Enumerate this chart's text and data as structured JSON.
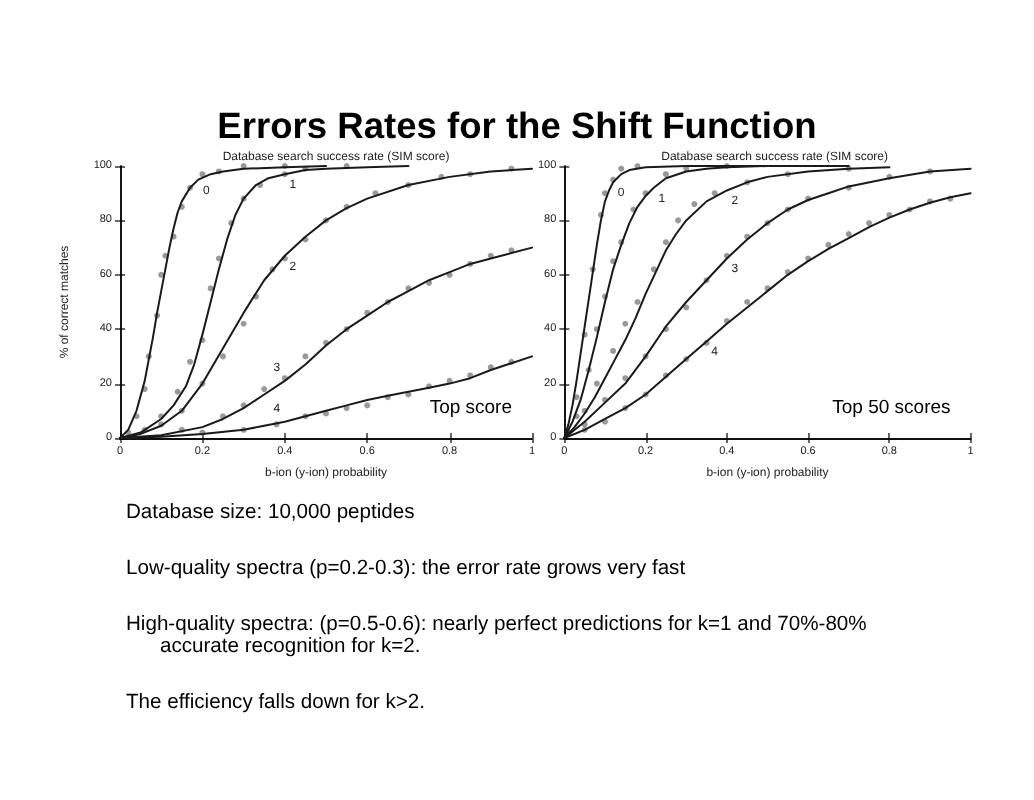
{
  "chart_data": [
    {
      "type": "other",
      "title": "Errors Rates for the Shift Function"
    },
    {
      "type": "line",
      "title": "Database search success rate (SIM score)",
      "xlabel": "b-ion (y-ion) probability",
      "ylabel": "% of correct matches",
      "xlim": [
        0,
        1
      ],
      "xticks": [
        0,
        0.2,
        0.4,
        0.6,
        0.8,
        1
      ],
      "ylim": [
        0,
        100
      ],
      "yticks": [
        0,
        20,
        40,
        60,
        80,
        100
      ],
      "series": [
        {
          "color": "#1a1a1a",
          "x": [
            0,
            0.02,
            0.04,
            0.06,
            0.07,
            0.08,
            0.09,
            0.1,
            0.11,
            0.12,
            0.13,
            0.14,
            0.15,
            0.17,
            0.19,
            0.22,
            0.25,
            0.3,
            0.4,
            0.5
          ],
          "values": [
            0,
            3,
            10,
            21,
            29,
            37,
            46,
            54,
            62,
            70,
            77,
            83,
            87,
            92,
            95,
            97,
            98,
            99,
            99.5,
            100
          ]
        },
        {
          "color": "#1a1a1a",
          "x": [
            0,
            0.05,
            0.1,
            0.13,
            0.16,
            0.18,
            0.2,
            0.22,
            0.24,
            0.26,
            0.28,
            0.3,
            0.33,
            0.36,
            0.4,
            0.45,
            0.5,
            0.6,
            0.7
          ],
          "values": [
            0,
            2,
            7,
            12,
            19,
            27,
            38,
            50,
            62,
            73,
            82,
            88,
            93,
            95.5,
            97,
            98.5,
            99,
            99.5,
            100
          ]
        },
        {
          "color": "#1a1a1a",
          "x": [
            0,
            0.05,
            0.1,
            0.15,
            0.2,
            0.25,
            0.3,
            0.35,
            0.4,
            0.45,
            0.5,
            0.55,
            0.6,
            0.7,
            0.8,
            0.9,
            1
          ],
          "values": [
            0,
            1.5,
            4.5,
            10,
            20,
            33,
            46,
            58,
            67,
            74,
            80,
            84.5,
            88,
            93,
            96,
            98,
            99
          ]
        },
        {
          "color": "#1a1a1a",
          "x": [
            0,
            0.1,
            0.2,
            0.25,
            0.3,
            0.35,
            0.4,
            0.45,
            0.5,
            0.55,
            0.6,
            0.65,
            0.7,
            0.75,
            0.8,
            0.85,
            0.9,
            0.95,
            1
          ],
          "values": [
            0,
            1,
            4,
            7,
            11,
            16,
            21,
            27,
            34,
            40,
            45,
            50,
            54,
            58,
            61,
            64,
            66,
            68,
            70
          ]
        },
        {
          "color": "#1a1a1a",
          "x": [
            0,
            0.1,
            0.2,
            0.3,
            0.35,
            0.4,
            0.45,
            0.5,
            0.55,
            0.6,
            0.65,
            0.7,
            0.75,
            0.8,
            0.85,
            0.9,
            0.95,
            1
          ],
          "values": [
            0,
            0.5,
            1.5,
            3,
            4.5,
            6,
            8,
            10,
            12,
            14,
            15.5,
            17,
            18.5,
            20,
            22,
            25,
            27.5,
            30
          ]
        },
        {
          "type": "scatter",
          "marker": "circle",
          "color": "#808080",
          "x": [
            0.02,
            0.04,
            0.06,
            0.07,
            0.09,
            0.1,
            0.11,
            0.13,
            0.15,
            0.17,
            0.2,
            0.24,
            0.3,
            0.4,
            0.06,
            0.1,
            0.14,
            0.17,
            0.2,
            0.22,
            0.24,
            0.27,
            0.3,
            0.34,
            0.4,
            0.45,
            0.55,
            0.1,
            0.15,
            0.2,
            0.25,
            0.3,
            0.33,
            0.37,
            0.4,
            0.45,
            0.5,
            0.55,
            0.62,
            0.7,
            0.78,
            0.85,
            0.95,
            0.15,
            0.25,
            0.3,
            0.35,
            0.4,
            0.45,
            0.5,
            0.55,
            0.6,
            0.65,
            0.7,
            0.75,
            0.8,
            0.85,
            0.9,
            0.95,
            0.2,
            0.3,
            0.38,
            0.45,
            0.5,
            0.55,
            0.6,
            0.65,
            0.7,
            0.75,
            0.8,
            0.85,
            0.9,
            0.95
          ],
          "values": [
            2,
            8,
            18,
            30,
            45,
            60,
            67,
            74,
            85,
            92,
            97,
            98,
            100,
            100,
            3,
            8,
            17,
            28,
            36,
            55,
            66,
            79,
            88,
            93,
            97,
            99,
            100,
            5,
            10,
            20,
            30,
            42,
            52,
            62,
            66,
            73,
            80,
            85,
            90,
            93,
            96,
            97,
            99,
            3,
            8,
            12,
            18,
            22,
            30,
            35,
            40,
            46,
            50,
            55,
            57,
            60,
            64,
            67,
            69,
            2,
            3,
            5,
            8,
            9,
            11,
            12,
            15,
            16,
            19,
            21,
            23,
            26,
            28
          ]
        }
      ],
      "annotations": [
        {
          "text": "0",
          "x": 0.19,
          "y": 95
        },
        {
          "text": "1",
          "x": 0.4,
          "y": 97
        },
        {
          "text": "2",
          "x": 0.4,
          "y": 67
        },
        {
          "text": "3",
          "x": 0.4,
          "y": 21
        },
        {
          "text": "4",
          "x": 0.4,
          "y": 6
        },
        "Top score"
      ]
    },
    {
      "type": "line",
      "title": "Database search success rate (SIM score)",
      "xlabel": "b-ion (y-ion) probability",
      "xlim": [
        0,
        1
      ],
      "xticks": [
        0,
        0.2,
        0.4,
        0.6,
        0.8,
        1
      ],
      "ylim": [
        0,
        100
      ],
      "yticks": [
        0,
        20,
        40,
        60,
        80,
        100
      ],
      "series": [
        {
          "color": "#1a1a1a",
          "x": [
            0,
            0.01,
            0.02,
            0.03,
            0.04,
            0.05,
            0.06,
            0.07,
            0.08,
            0.09,
            0.1,
            0.11,
            0.12,
            0.14,
            0.16,
            0.2,
            0.3,
            0.5
          ],
          "values": [
            0,
            5,
            12,
            21,
            31,
            41,
            51,
            61,
            71,
            80,
            87,
            91,
            94,
            97,
            98.5,
            99.5,
            100,
            100
          ]
        },
        {
          "color": "#1a1a1a",
          "x": [
            0,
            0.02,
            0.04,
            0.06,
            0.08,
            0.1,
            0.12,
            0.14,
            0.16,
            0.18,
            0.2,
            0.22,
            0.25,
            0.3,
            0.35,
            0.4,
            0.5,
            0.7
          ],
          "values": [
            0,
            6,
            14,
            25,
            37,
            50,
            62,
            71,
            79,
            85,
            89,
            92,
            95.5,
            98,
            99,
            99.5,
            100,
            100
          ]
        },
        {
          "color": "#1a1a1a",
          "x": [
            0,
            0.025,
            0.05,
            0.075,
            0.1,
            0.125,
            0.15,
            0.175,
            0.2,
            0.225,
            0.25,
            0.275,
            0.3,
            0.35,
            0.4,
            0.45,
            0.5,
            0.6,
            0.7,
            0.8
          ],
          "values": [
            0,
            4,
            9,
            15,
            22,
            29,
            36,
            44,
            53,
            61,
            69,
            75,
            80,
            87,
            91,
            94,
            96,
            98,
            99,
            99.5
          ]
        },
        {
          "color": "#1a1a1a",
          "x": [
            0,
            0.05,
            0.1,
            0.15,
            0.2,
            0.25,
            0.3,
            0.35,
            0.4,
            0.45,
            0.5,
            0.55,
            0.6,
            0.65,
            0.7,
            0.8,
            0.9,
            1
          ],
          "values": [
            0,
            6,
            13,
            20,
            30,
            41,
            50,
            58,
            66,
            73,
            79,
            84,
            87.5,
            90,
            92.5,
            95.5,
            98,
            99
          ]
        },
        {
          "color": "#1a1a1a",
          "x": [
            0,
            0.05,
            0.1,
            0.15,
            0.2,
            0.25,
            0.3,
            0.35,
            0.4,
            0.45,
            0.5,
            0.55,
            0.6,
            0.65,
            0.7,
            0.75,
            0.8,
            0.85,
            0.9,
            0.95,
            1
          ],
          "values": [
            0,
            3,
            7,
            11,
            16,
            22.5,
            29,
            35.5,
            42,
            48,
            54,
            60,
            65,
            69.5,
            73.5,
            77.5,
            81,
            84,
            86.5,
            88.5,
            90
          ]
        },
        {
          "type": "scatter",
          "marker": "circle",
          "color": "#808080",
          "x": [
            0.01,
            0.03,
            0.05,
            0.07,
            0.09,
            0.1,
            0.12,
            0.14,
            0.18,
            0.03,
            0.06,
            0.08,
            0.1,
            0.12,
            0.14,
            0.17,
            0.2,
            0.25,
            0.3,
            0.4,
            0.05,
            0.08,
            0.12,
            0.15,
            0.18,
            0.22,
            0.25,
            0.28,
            0.32,
            0.37,
            0.45,
            0.55,
            0.7,
            0.05,
            0.1,
            0.15,
            0.2,
            0.25,
            0.3,
            0.35,
            0.4,
            0.45,
            0.5,
            0.55,
            0.6,
            0.7,
            0.8,
            0.9,
            0.05,
            0.1,
            0.15,
            0.2,
            0.25,
            0.3,
            0.35,
            0.4,
            0.45,
            0.5,
            0.55,
            0.6,
            0.65,
            0.7,
            0.75,
            0.8,
            0.85,
            0.9,
            0.95
          ],
          "values": [
            2,
            15,
            38,
            62,
            82,
            90,
            95,
            99,
            100,
            8,
            25,
            40,
            52,
            65,
            72,
            84,
            90,
            97,
            99,
            100,
            10,
            20,
            32,
            42,
            50,
            62,
            72,
            80,
            86,
            90,
            94,
            97,
            99,
            5,
            14,
            22,
            30,
            40,
            48,
            58,
            67,
            74,
            79,
            84,
            88,
            92,
            96,
            98,
            3,
            6,
            11,
            16,
            23,
            29,
            35,
            43,
            50,
            55,
            61,
            66,
            71,
            75,
            79,
            82,
            84,
            87,
            88
          ]
        }
      ],
      "annotations": [
        {
          "text": "0",
          "x": 0.12,
          "y": 94
        },
        {
          "text": "1",
          "x": 0.22,
          "y": 92
        },
        {
          "text": "2",
          "x": 0.4,
          "y": 91
        },
        {
          "text": "3",
          "x": 0.4,
          "y": 66
        },
        {
          "text": "4",
          "x": 0.35,
          "y": 35.5
        },
        "Top 50 scores"
      ]
    },
    {
      "type": "other",
      "annotations": [
        "Database size: 10,000 peptides",
        "Low-quality spectra (p=0.2-0.3): the error rate grows very fast",
        "High-quality spectra: (p=0.5-0.6): nearly perfect predictions for k=1 and 70%-80% accurate recognition for k=2.",
        "The efficiency falls down for k>2."
      ]
    }
  ]
}
